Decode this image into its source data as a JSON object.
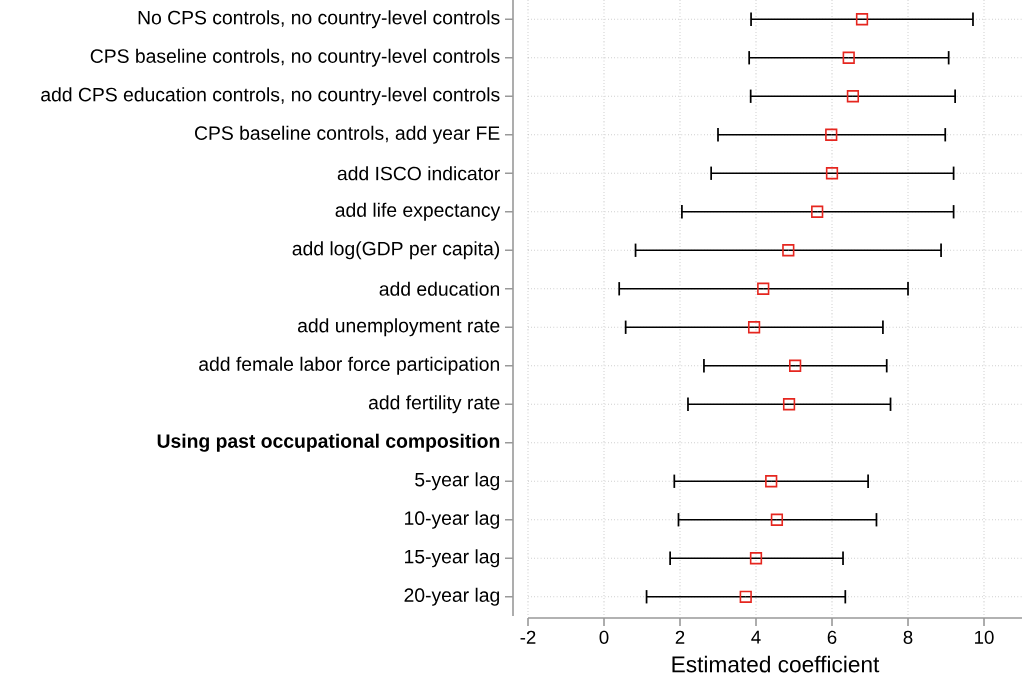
{
  "chart_data": {
    "type": "scatter",
    "xlabel": "Estimated coefficient",
    "categories": [
      "No CPS controls, no country-level controls",
      "CPS baseline controls, no country-level controls",
      "add CPS education controls, no country-level controls",
      "CPS baseline controls, add year FE",
      "add ISCO indicator",
      "add life expectancy",
      "add log(GDP per capita)",
      "add education",
      "add unemployment rate",
      "add female labor force participation",
      "add fertility rate",
      "Using past occupational composition",
      "5-year lag",
      "10-year lag",
      "15-year lag",
      "20-year lag"
    ],
    "orientation": "horizontal",
    "values": [
      6.79,
      6.44,
      6.55,
      5.98,
      6.0,
      5.61,
      4.85,
      4.19,
      3.95,
      5.03,
      4.87,
      null,
      4.4,
      4.55,
      4.0,
      3.73
    ],
    "errors": [
      [
        3.87,
        9.71
      ],
      [
        3.82,
        9.07
      ],
      [
        3.86,
        9.24
      ],
      [
        3.0,
        8.98
      ],
      [
        2.82,
        9.2
      ],
      [
        2.05,
        9.2
      ],
      [
        0.83,
        8.87
      ],
      [
        0.4,
        8.0
      ],
      [
        0.57,
        7.34
      ],
      [
        2.63,
        7.44
      ],
      [
        2.21,
        7.54
      ],
      null,
      [
        1.85,
        6.95
      ],
      [
        1.96,
        7.17
      ],
      [
        1.74,
        6.29
      ],
      [
        1.12,
        6.35
      ]
    ],
    "color": "#e5261f",
    "marker": "square",
    "grid": true,
    "xlim": [
      -2,
      11
    ],
    "xticks": [
      -2,
      0,
      2,
      4,
      6,
      8,
      10
    ]
  }
}
